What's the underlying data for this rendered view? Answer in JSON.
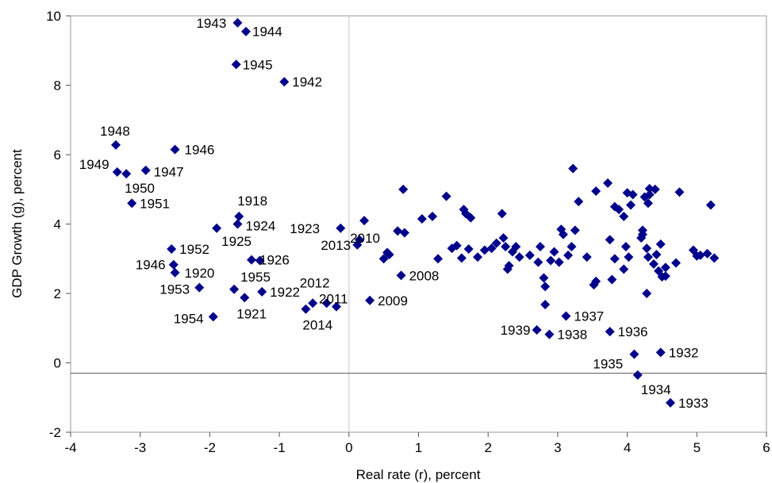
{
  "chart_data": {
    "type": "scatter",
    "title": "",
    "xlabel": "Real rate (r), percent",
    "ylabel": "GDP Growth (g), percent",
    "xlim": [
      -4,
      6
    ],
    "ylim": [
      -2,
      10
    ],
    "x_ticks": [
      -4,
      -3,
      -2,
      -1,
      0,
      1,
      2,
      3,
      4,
      5,
      6
    ],
    "y_ticks": [
      -2,
      0,
      2,
      4,
      6,
      8,
      10
    ],
    "grid": false,
    "reference_lines": {
      "vertical_x": 0,
      "horizontal_y": -0.3
    },
    "series": [
      {
        "marker": "diamond",
        "color": "#00008B",
        "points": [
          {
            "x": -1.6,
            "y": 9.8,
            "label": "1943"
          },
          {
            "x": -1.48,
            "y": 9.55,
            "label": "1944"
          },
          {
            "x": -1.62,
            "y": 8.6,
            "label": "1945"
          },
          {
            "x": -0.93,
            "y": 8.1,
            "label": "1942"
          },
          {
            "x": -3.35,
            "y": 6.28,
            "label": "1948"
          },
          {
            "x": -2.5,
            "y": 6.15,
            "label": "1946"
          },
          {
            "x": -3.33,
            "y": 5.5,
            "label": "1949"
          },
          {
            "x": -3.2,
            "y": 5.45,
            "label": "1950"
          },
          {
            "x": -2.92,
            "y": 5.55,
            "label": "1947"
          },
          {
            "x": -3.12,
            "y": 4.6,
            "label": "1951"
          },
          {
            "x": -1.58,
            "y": 4.22,
            "label": "1918"
          },
          {
            "x": -1.6,
            "y": 4.0,
            "label": "1924"
          },
          {
            "x": -1.9,
            "y": 3.88,
            "label": "1925"
          },
          {
            "x": -0.12,
            "y": 3.88,
            "label": "1923"
          },
          {
            "x": -2.55,
            "y": 3.28,
            "label": "1952"
          },
          {
            "x": -2.52,
            "y": 2.83,
            "label": "1946"
          },
          {
            "x": -2.5,
            "y": 2.6,
            "label": "1920"
          },
          {
            "x": -1.4,
            "y": 2.97,
            "label": "1926"
          },
          {
            "x": -1.28,
            "y": 2.95
          },
          {
            "x": -2.15,
            "y": 2.17,
            "label": "1953"
          },
          {
            "x": -1.65,
            "y": 2.12,
            "label": "1955"
          },
          {
            "x": -1.5,
            "y": 1.88,
            "label": "1921"
          },
          {
            "x": -1.25,
            "y": 2.05,
            "label": "1922"
          },
          {
            "x": -1.95,
            "y": 1.33,
            "label": "1954"
          },
          {
            "x": -0.62,
            "y": 1.55,
            "label": "2014"
          },
          {
            "x": -0.52,
            "y": 1.72
          },
          {
            "x": -0.32,
            "y": 1.72,
            "label": "2012"
          },
          {
            "x": -0.18,
            "y": 1.62,
            "label": "2011"
          },
          {
            "x": 0.3,
            "y": 1.8,
            "label": "2009"
          },
          {
            "x": 0.75,
            "y": 2.52,
            "label": "2008"
          },
          {
            "x": 0.12,
            "y": 3.4,
            "label": "2013"
          },
          {
            "x": 0.22,
            "y": 4.1,
            "label": "2010"
          },
          {
            "x": 0.15,
            "y": 3.55
          },
          {
            "x": 0.5,
            "y": 3.0
          },
          {
            "x": 0.55,
            "y": 3.18
          },
          {
            "x": 0.58,
            "y": 3.12
          },
          {
            "x": 0.7,
            "y": 3.8
          },
          {
            "x": 0.8,
            "y": 3.75
          },
          {
            "x": 0.78,
            "y": 5.0
          },
          {
            "x": 1.05,
            "y": 4.15
          },
          {
            "x": 1.2,
            "y": 4.22
          },
          {
            "x": 1.28,
            "y": 3.0
          },
          {
            "x": 1.4,
            "y": 4.8
          },
          {
            "x": 1.48,
            "y": 3.3
          },
          {
            "x": 1.55,
            "y": 3.38
          },
          {
            "x": 1.62,
            "y": 3.02
          },
          {
            "x": 1.65,
            "y": 4.42
          },
          {
            "x": 1.68,
            "y": 4.3
          },
          {
            "x": 1.72,
            "y": 3.28
          },
          {
            "x": 1.75,
            "y": 4.18
          },
          {
            "x": 1.85,
            "y": 3.05
          },
          {
            "x": 1.95,
            "y": 3.25
          },
          {
            "x": 2.05,
            "y": 3.3
          },
          {
            "x": 2.12,
            "y": 3.45
          },
          {
            "x": 2.2,
            "y": 4.3
          },
          {
            "x": 2.22,
            "y": 3.6
          },
          {
            "x": 2.25,
            "y": 3.35
          },
          {
            "x": 2.28,
            "y": 2.7
          },
          {
            "x": 2.3,
            "y": 2.8
          },
          {
            "x": 2.35,
            "y": 3.2
          },
          {
            "x": 2.4,
            "y": 3.35
          },
          {
            "x": 2.45,
            "y": 3.05
          },
          {
            "x": 2.6,
            "y": 3.1
          },
          {
            "x": 2.7,
            "y": 0.95,
            "label": "1939"
          },
          {
            "x": 2.72,
            "y": 2.9
          },
          {
            "x": 2.75,
            "y": 3.35
          },
          {
            "x": 2.8,
            "y": 2.45
          },
          {
            "x": 2.82,
            "y": 2.2
          },
          {
            "x": 2.82,
            "y": 1.68
          },
          {
            "x": 2.88,
            "y": 0.82,
            "label": "1938"
          },
          {
            "x": 2.9,
            "y": 2.95
          },
          {
            "x": 2.95,
            "y": 3.2
          },
          {
            "x": 3.02,
            "y": 2.9
          },
          {
            "x": 3.05,
            "y": 3.85
          },
          {
            "x": 3.08,
            "y": 3.7
          },
          {
            "x": 3.12,
            "y": 1.35,
            "label": "1937"
          },
          {
            "x": 3.15,
            "y": 3.1
          },
          {
            "x": 3.2,
            "y": 3.35
          },
          {
            "x": 3.22,
            "y": 5.6
          },
          {
            "x": 3.25,
            "y": 3.82
          },
          {
            "x": 3.3,
            "y": 4.65
          },
          {
            "x": 3.42,
            "y": 3.05
          },
          {
            "x": 3.52,
            "y": 2.25
          },
          {
            "x": 3.55,
            "y": 2.35
          },
          {
            "x": 3.55,
            "y": 4.95
          },
          {
            "x": 3.72,
            "y": 5.18
          },
          {
            "x": 3.75,
            "y": 3.55
          },
          {
            "x": 3.75,
            "y": 0.9,
            "label": "1936"
          },
          {
            "x": 3.78,
            "y": 2.4
          },
          {
            "x": 3.82,
            "y": 3.0
          },
          {
            "x": 3.82,
            "y": 4.5
          },
          {
            "x": 3.88,
            "y": 4.42
          },
          {
            "x": 3.95,
            "y": 4.22
          },
          {
            "x": 3.95,
            "y": 2.7
          },
          {
            "x": 3.98,
            "y": 3.35
          },
          {
            "x": 4.0,
            "y": 4.9
          },
          {
            "x": 4.02,
            "y": 3.05
          },
          {
            "x": 4.05,
            "y": 4.55
          },
          {
            "x": 4.08,
            "y": 4.85
          },
          {
            "x": 4.1,
            "y": 0.25,
            "label": "1935"
          },
          {
            "x": 4.15,
            "y": -0.35,
            "label": "1934"
          },
          {
            "x": 4.2,
            "y": 3.6
          },
          {
            "x": 4.22,
            "y": 3.82
          },
          {
            "x": 4.22,
            "y": 3.7
          },
          {
            "x": 4.25,
            "y": 4.78
          },
          {
            "x": 4.28,
            "y": 2.0
          },
          {
            "x": 4.28,
            "y": 3.3
          },
          {
            "x": 4.3,
            "y": 3.05
          },
          {
            "x": 4.3,
            "y": 4.6
          },
          {
            "x": 4.32,
            "y": 4.85
          },
          {
            "x": 4.32,
            "y": 5.02
          },
          {
            "x": 4.38,
            "y": 2.85
          },
          {
            "x": 4.4,
            "y": 5.0
          },
          {
            "x": 4.42,
            "y": 3.12
          },
          {
            "x": 4.45,
            "y": 2.65
          },
          {
            "x": 4.48,
            "y": 0.3,
            "label": "1932"
          },
          {
            "x": 4.48,
            "y": 3.42
          },
          {
            "x": 4.5,
            "y": 2.48
          },
          {
            "x": 4.55,
            "y": 2.75
          },
          {
            "x": 4.55,
            "y": 2.5
          },
          {
            "x": 4.62,
            "y": -1.15,
            "label": "1933"
          },
          {
            "x": 4.7,
            "y": 2.88
          },
          {
            "x": 4.75,
            "y": 4.92
          },
          {
            "x": 4.95,
            "y": 3.25
          },
          {
            "x": 5.0,
            "y": 3.08
          },
          {
            "x": 5.05,
            "y": 3.1
          },
          {
            "x": 5.15,
            "y": 3.15
          },
          {
            "x": 5.2,
            "y": 4.55
          },
          {
            "x": 5.25,
            "y": 3.02
          }
        ]
      }
    ]
  }
}
